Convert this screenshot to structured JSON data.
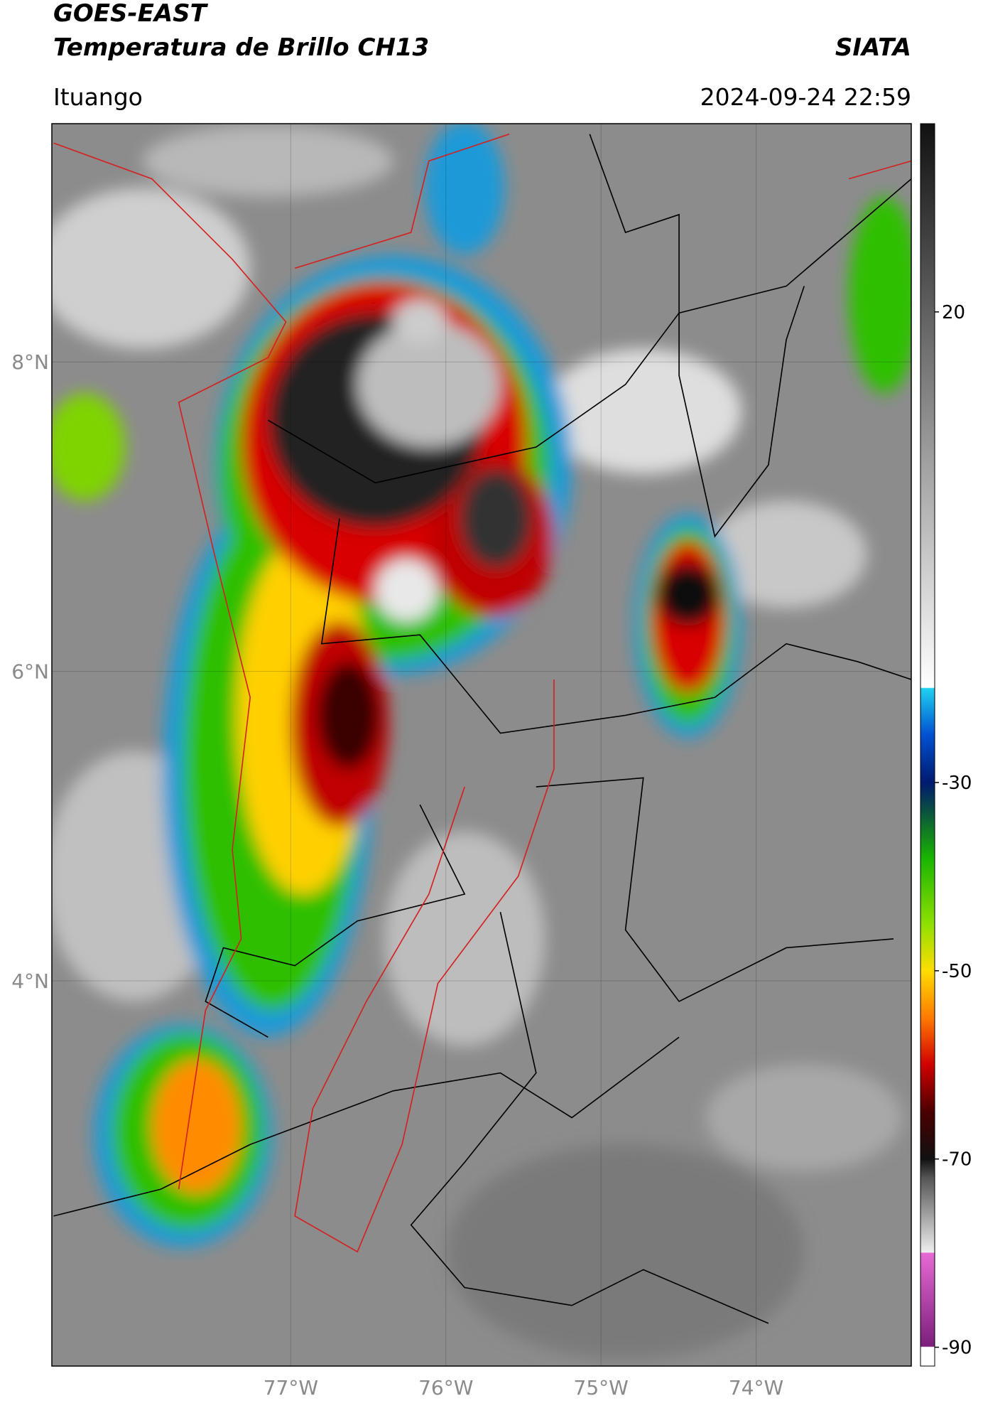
{
  "header": {
    "title": "GOES-EAST",
    "subtitle": "Temperatura de Brillo CH13",
    "organization": "SIATA",
    "location": "Ituango",
    "datetime": "2024-09-24 22:59"
  },
  "map": {
    "lon_range": [
      -78.54,
      -73.0
    ],
    "lat_range": [
      1.51,
      9.54
    ],
    "lon_ticks": [
      {
        "value": -77,
        "label": "77°W"
      },
      {
        "value": -76,
        "label": "76°W"
      },
      {
        "value": -75,
        "label": "75°W"
      },
      {
        "value": -74,
        "label": "74°W"
      }
    ],
    "lat_ticks": [
      {
        "value": 8,
        "label": "8°N"
      },
      {
        "value": 6,
        "label": "6°N"
      },
      {
        "value": 4,
        "label": "4°N"
      }
    ]
  },
  "colorbar": {
    "range": [
      -92,
      40
    ],
    "ticks": [
      20,
      -30,
      -50,
      -70,
      -90
    ],
    "stops": [
      [
        -92,
        "#ffffff"
      ],
      [
        -90,
        "#ffffff"
      ],
      [
        -89.9,
        "#7b1f7b"
      ],
      [
        -80,
        "#e66ad4"
      ],
      [
        -79.9,
        "#eeeeee"
      ],
      [
        -72,
        "#555555"
      ],
      [
        -70,
        "#111111"
      ],
      [
        -65,
        "#4a0000"
      ],
      [
        -60,
        "#d00000"
      ],
      [
        -55,
        "#ff7a00"
      ],
      [
        -50,
        "#ffdd00"
      ],
      [
        -45,
        "#8ee000"
      ],
      [
        -38,
        "#19b400"
      ],
      [
        -33,
        "#0a5040"
      ],
      [
        -30,
        "#001a70"
      ],
      [
        -25,
        "#0050d0"
      ],
      [
        -20,
        "#20d0f0"
      ],
      [
        -19.9,
        "#ffffff"
      ],
      [
        40,
        "#111111"
      ]
    ]
  }
}
